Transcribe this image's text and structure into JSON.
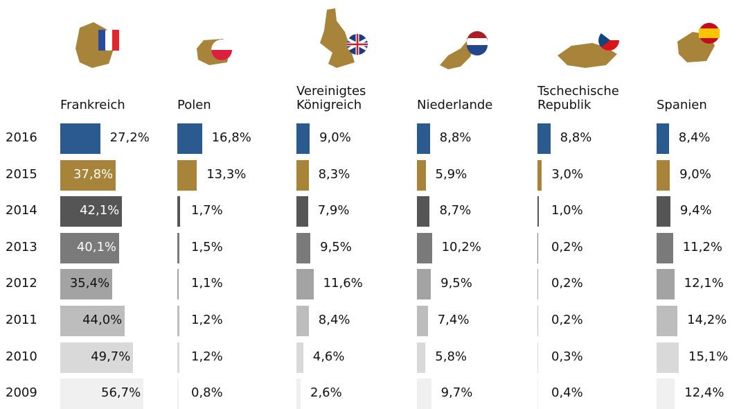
{
  "chart_data": {
    "type": "bar",
    "categories": [
      "2016",
      "2015",
      "2014",
      "2013",
      "2012",
      "2011",
      "2010",
      "2009"
    ],
    "colors": [
      "#2b5b8e",
      "#a8843b",
      "#555555",
      "#7a7a7a",
      "#a3a3a3",
      "#bdbdbd",
      "#d9d9d9",
      "#f0f0f0"
    ],
    "series": [
      {
        "name": "Frankreich",
        "values": [
          27.2,
          37.8,
          42.1,
          40.1,
          35.4,
          44.0,
          49.7,
          56.7
        ],
        "value_labels": [
          "27,2%",
          "37,8%",
          "42,1%",
          "40,1%",
          "35,4%",
          "44,0%",
          "49,7%",
          "56,7%"
        ]
      },
      {
        "name": "Polen",
        "values": [
          16.8,
          13.3,
          1.7,
          1.5,
          1.1,
          1.2,
          1.2,
          0.8
        ],
        "value_labels": [
          "16,8%",
          "13,3%",
          "1,7%",
          "1,5%",
          "1,1%",
          "1,2%",
          "1,2%",
          "0,8%"
        ]
      },
      {
        "name": "Vereinigtes\nKönigreich",
        "values": [
          9.0,
          8.3,
          7.9,
          9.5,
          11.6,
          8.4,
          4.6,
          2.6
        ],
        "value_labels": [
          "9,0%",
          "8,3%",
          "7,9%",
          "9,5%",
          "11,6%",
          "8,4%",
          "4,6%",
          "2,6%"
        ]
      },
      {
        "name": "Niederlande",
        "values": [
          8.8,
          5.9,
          8.7,
          10.2,
          9.5,
          7.4,
          5.8,
          9.7
        ],
        "value_labels": [
          "8,8%",
          "5,9%",
          "8,7%",
          "10,2%",
          "9,5%",
          "7,4%",
          "5,8%",
          "9,7%"
        ]
      },
      {
        "name": "Tschechische\nRepublik",
        "values": [
          8.8,
          3.0,
          1.0,
          0.2,
          0.2,
          0.2,
          0.3,
          0.4
        ],
        "value_labels": [
          "8,8%",
          "3,0%",
          "1,0%",
          "0,2%",
          "0,2%",
          "0,2%",
          "0,3%",
          "0,4%"
        ]
      },
      {
        "name": "Spanien",
        "values": [
          8.4,
          9.0,
          9.4,
          11.2,
          12.1,
          14.2,
          15.1,
          12.4
        ],
        "value_labels": [
          "8,4%",
          "9,0%",
          "9,4%",
          "11,2%",
          "12,1%",
          "14,2%",
          "15,1%",
          "12,4%"
        ]
      }
    ]
  }
}
